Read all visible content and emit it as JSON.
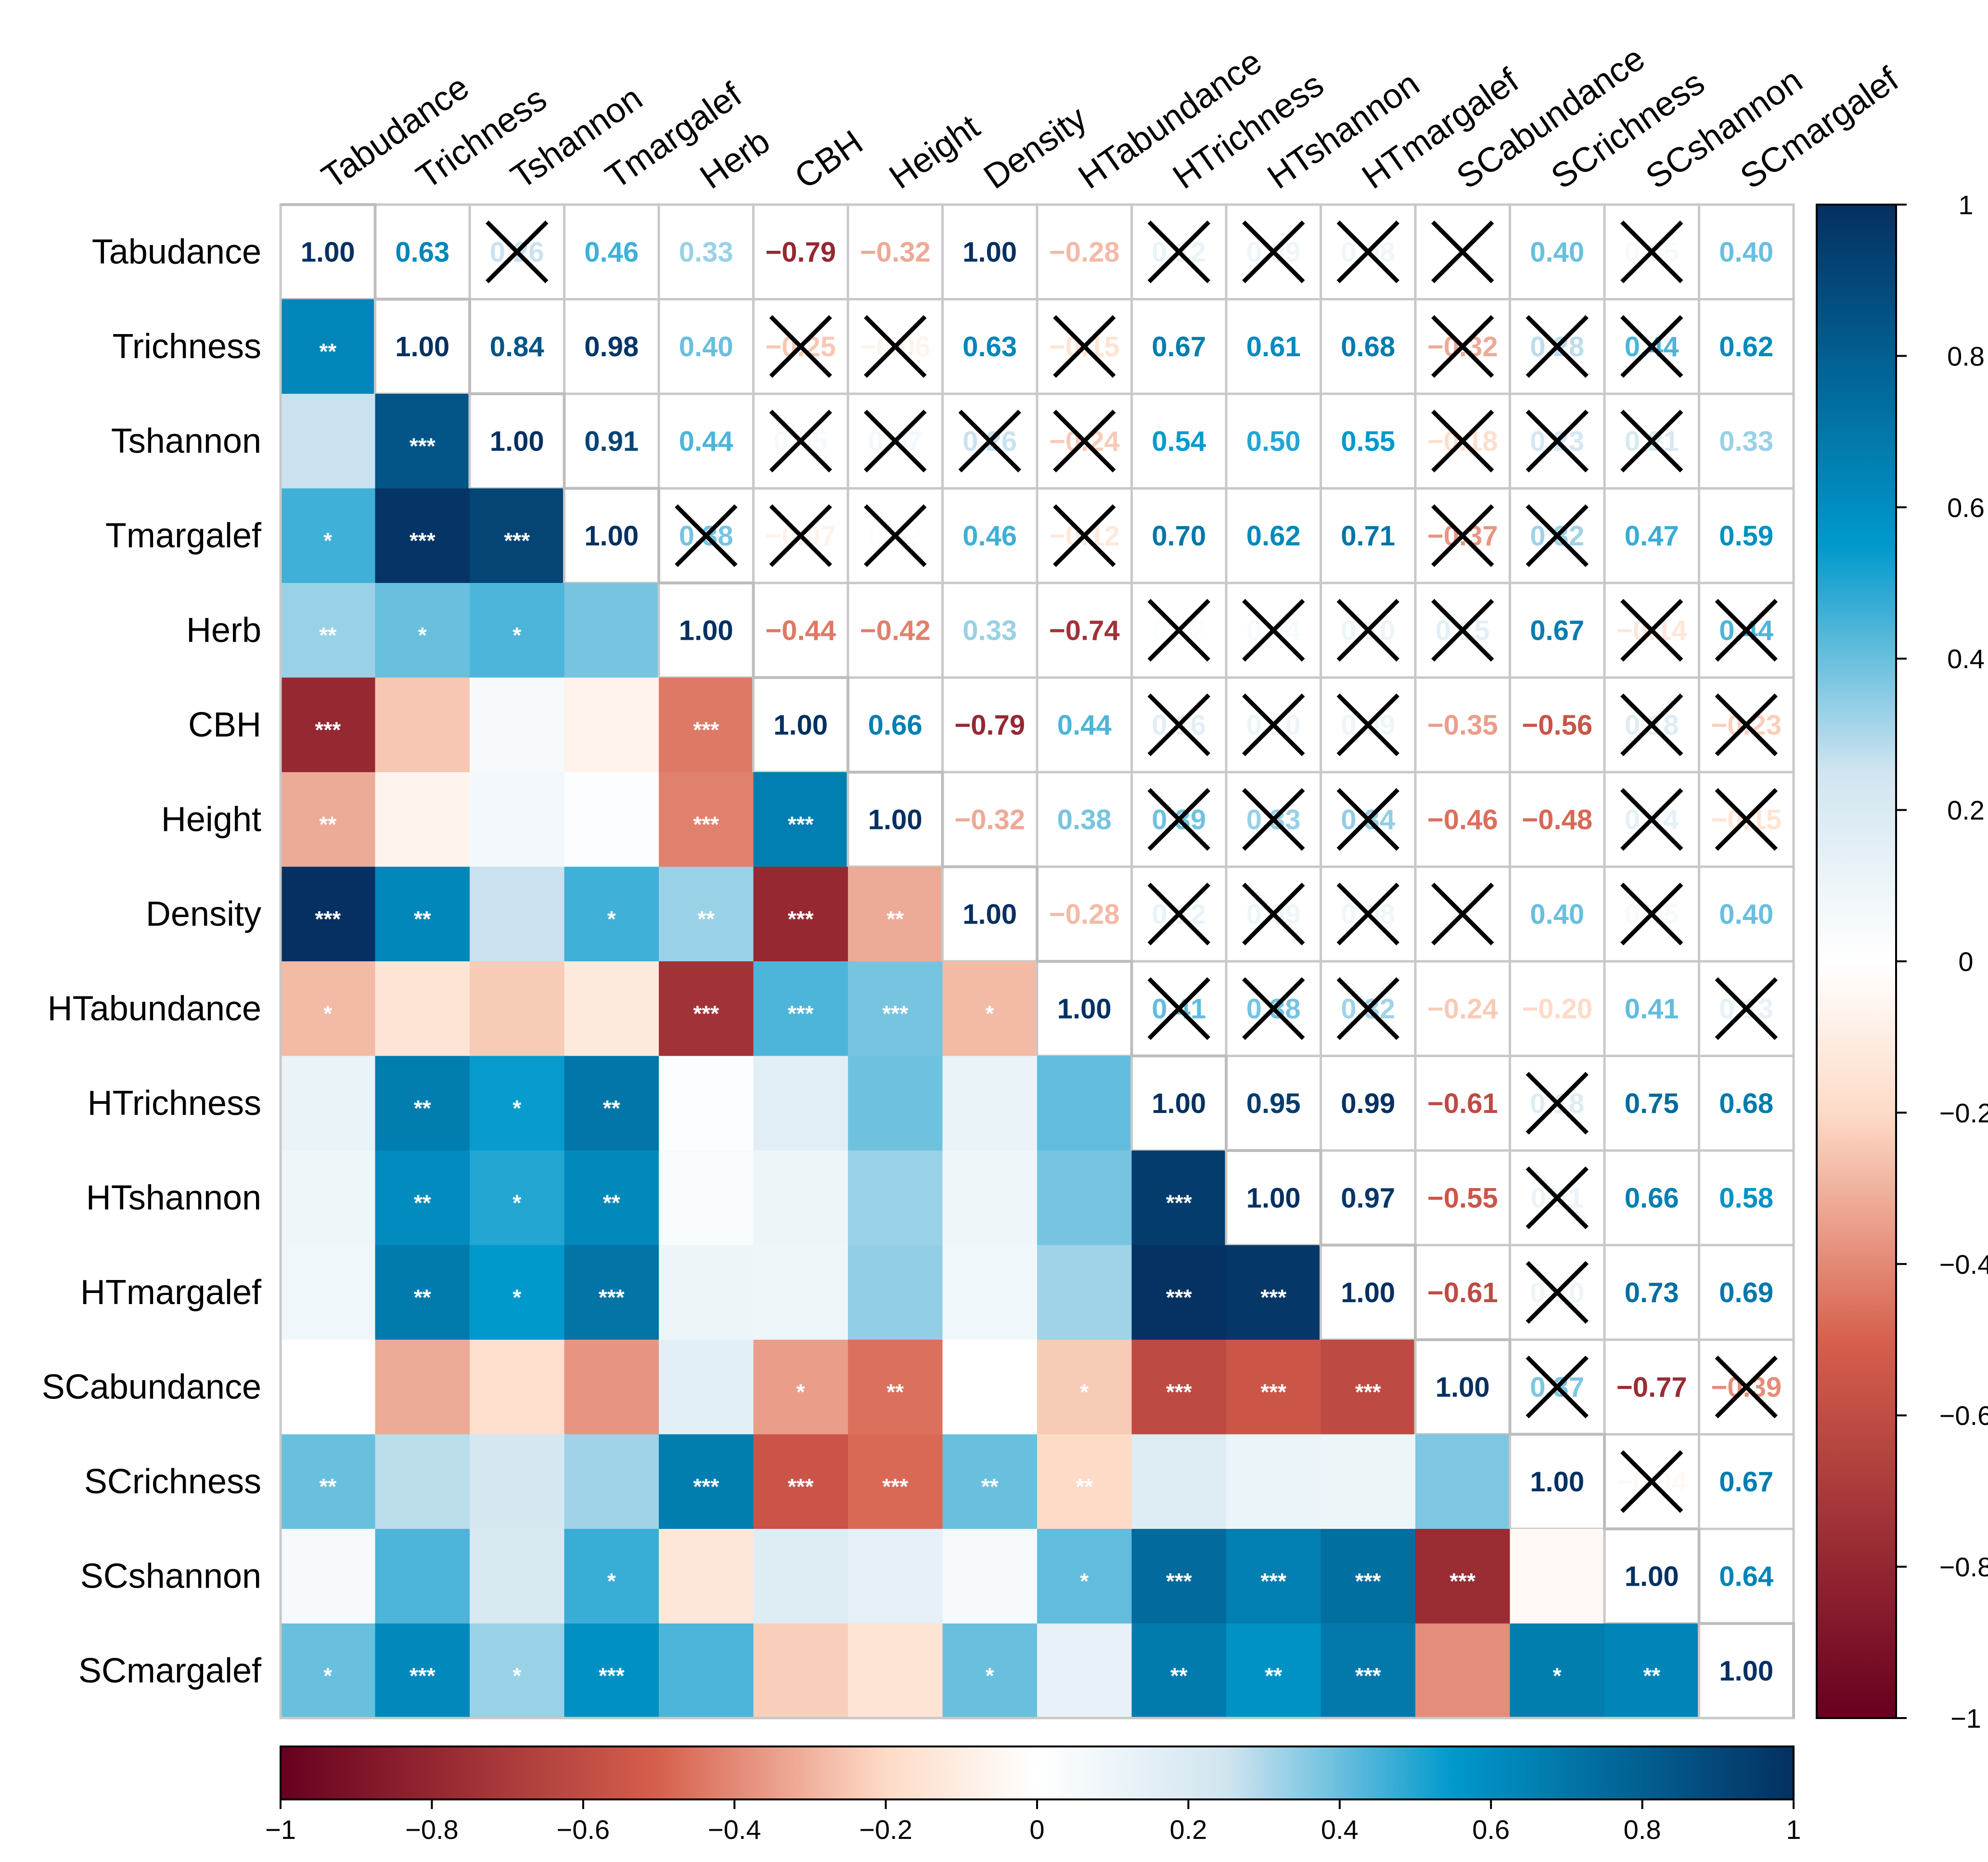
{
  "chart_data": {
    "type": "heatmap",
    "title": "",
    "variables": [
      "Tabudance",
      "Trichness",
      "Tshannon",
      "Tmargalef",
      "Herb",
      "CBH",
      "Height",
      "Density",
      "HTabundance",
      "HTrichness",
      "HTshannon",
      "HTmargalef",
      "SCabundance",
      "SCrichness",
      "SCshannon",
      "SCmargalef"
    ],
    "upper_triangle": "correlation coefficients (numbers); crossed cells = not significant",
    "lower_triangle": "colored squares with significance stars",
    "matrix": [
      [
        1.0,
        0.63,
        0.26,
        0.46,
        0.33,
        -0.79,
        -0.32,
        1.0,
        -0.28,
        0.12,
        0.09,
        0.08,
        0.0,
        0.4,
        0.05,
        0.4
      ],
      [
        0.63,
        1.0,
        0.84,
        0.98,
        0.4,
        -0.25,
        -0.06,
        0.63,
        -0.15,
        0.67,
        0.61,
        0.68,
        -0.32,
        0.28,
        0.44,
        0.62
      ],
      [
        0.26,
        0.84,
        1.0,
        0.91,
        0.44,
        0.05,
        0.07,
        0.26,
        -0.24,
        0.54,
        0.5,
        0.55,
        -0.18,
        0.23,
        0.21,
        0.33
      ],
      [
        0.46,
        0.98,
        0.91,
        1.0,
        0.38,
        -0.07,
        0.02,
        0.46,
        -0.12,
        0.7,
        0.62,
        0.71,
        -0.37,
        0.32,
        0.47,
        0.59
      ],
      [
        0.33,
        0.4,
        0.44,
        0.38,
        1.0,
        -0.44,
        -0.42,
        0.33,
        -0.74,
        0.02,
        0.04,
        0.1,
        0.15,
        0.67,
        -0.14,
        0.44
      ],
      [
        -0.79,
        -0.25,
        0.05,
        -0.07,
        -0.44,
        1.0,
        0.66,
        -0.79,
        0.44,
        0.16,
        0.1,
        0.09,
        -0.35,
        -0.56,
        0.18,
        -0.23
      ],
      [
        -0.32,
        -0.06,
        0.07,
        0.02,
        -0.42,
        0.66,
        1.0,
        -0.32,
        0.38,
        0.39,
        0.33,
        0.34,
        -0.46,
        -0.48,
        0.14,
        -0.15
      ],
      [
        1.0,
        0.63,
        0.26,
        0.46,
        0.33,
        -0.79,
        -0.32,
        1.0,
        -0.28,
        0.12,
        0.09,
        0.08,
        0.0,
        0.4,
        0.05,
        0.4
      ],
      [
        -0.28,
        -0.15,
        -0.24,
        -0.12,
        -0.74,
        0.44,
        0.38,
        -0.28,
        1.0,
        0.41,
        0.38,
        0.32,
        -0.24,
        -0.2,
        0.41,
        0.13
      ],
      [
        0.12,
        0.67,
        0.54,
        0.7,
        0.02,
        0.16,
        0.39,
        0.12,
        0.41,
        1.0,
        0.95,
        0.99,
        -0.61,
        0.18,
        0.75,
        0.68
      ],
      [
        0.09,
        0.61,
        0.5,
        0.62,
        0.04,
        0.1,
        0.33,
        0.09,
        0.38,
        0.95,
        1.0,
        0.97,
        -0.55,
        0.11,
        0.66,
        0.58
      ],
      [
        0.08,
        0.68,
        0.55,
        0.71,
        0.1,
        0.09,
        0.34,
        0.08,
        0.32,
        0.99,
        0.97,
        1.0,
        -0.61,
        0.1,
        0.73,
        0.69
      ],
      [
        0.0,
        -0.32,
        -0.18,
        -0.37,
        0.15,
        -0.35,
        -0.46,
        0.0,
        -0.24,
        -0.61,
        -0.55,
        -0.61,
        1.0,
        0.37,
        -0.77,
        -0.39
      ],
      [
        0.4,
        0.28,
        0.23,
        0.32,
        0.67,
        -0.56,
        -0.48,
        0.4,
        -0.2,
        0.18,
        0.11,
        0.1,
        0.37,
        1.0,
        -0.04,
        0.67
      ],
      [
        0.05,
        0.44,
        0.21,
        0.47,
        -0.14,
        0.18,
        0.14,
        0.05,
        0.41,
        0.75,
        0.66,
        0.73,
        -0.77,
        -0.04,
        1.0,
        0.64
      ],
      [
        0.4,
        0.62,
        0.33,
        0.59,
        0.44,
        -0.23,
        -0.15,
        0.4,
        0.13,
        0.68,
        0.58,
        0.69,
        -0.39,
        0.67,
        0.64,
        1.0
      ]
    ],
    "significance": [
      [
        "",
        "**",
        "",
        "*",
        "**",
        "***",
        "**",
        "***",
        "*",
        "",
        "",
        "",
        "",
        "**",
        "",
        "*"
      ],
      [
        "**",
        "",
        "***",
        "***",
        "*",
        "",
        "",
        "**",
        "",
        "**",
        "**",
        "**",
        "",
        "",
        "",
        "***"
      ],
      [
        "",
        "***",
        "",
        "***",
        "*",
        "",
        "",
        "",
        "",
        "*",
        "*",
        "*",
        "",
        "",
        "",
        "*"
      ],
      [
        "*",
        "***",
        "***",
        "",
        "",
        "",
        "",
        "*",
        "",
        "**",
        "**",
        "***",
        "",
        "",
        "*",
        "***"
      ],
      [
        "**",
        "*",
        "*",
        "",
        "",
        "***",
        "***",
        "**",
        "***",
        "",
        "",
        "",
        "",
        "***",
        "",
        ""
      ],
      [
        "***",
        "",
        "",
        "",
        "***",
        "",
        "***",
        "***",
        "***",
        "",
        "",
        "",
        "*",
        "***",
        "",
        ""
      ],
      [
        "**",
        "",
        "",
        "",
        "***",
        "***",
        "",
        "**",
        "***",
        "",
        "",
        "",
        "**",
        "***",
        "",
        ""
      ],
      [
        "***",
        "**",
        "",
        "*",
        "**",
        "***",
        "**",
        "",
        "*",
        "",
        "",
        "",
        "",
        "**",
        "",
        "*"
      ],
      [
        "*",
        "",
        "",
        "",
        "***",
        "***",
        "***",
        "*",
        "",
        "",
        "",
        "",
        "*",
        "**",
        "*",
        ""
      ],
      [
        "",
        "**",
        "*",
        "**",
        "",
        "",
        "",
        "",
        "",
        "",
        "***",
        "***",
        "***",
        "",
        "***",
        "**"
      ],
      [
        "",
        "**",
        "*",
        "**",
        "",
        "",
        "",
        "",
        "",
        "***",
        "",
        "***",
        "***",
        "",
        "***",
        "**"
      ],
      [
        "",
        "**",
        "*",
        "***",
        "",
        "",
        "",
        "",
        "",
        "***",
        "***",
        "",
        "***",
        "",
        "***",
        "***"
      ],
      [
        "",
        "",
        "",
        "",
        "",
        "*",
        "**",
        "",
        "*",
        "***",
        "***",
        "***",
        "",
        "",
        "***",
        ""
      ],
      [
        "**",
        "",
        "",
        "",
        "***",
        "***",
        "***",
        "**",
        "**",
        "",
        "",
        "",
        "",
        "",
        "",
        "*"
      ],
      [
        "",
        "",
        "",
        "*",
        "",
        "",
        "",
        "",
        "*",
        "***",
        "***",
        "***",
        "***",
        "",
        "",
        "**"
      ],
      [
        "*",
        "***",
        "*",
        "***",
        "",
        "",
        "",
        "*",
        "",
        "**",
        "**",
        "***",
        "",
        "*",
        "**",
        ""
      ]
    ],
    "legend_ticks": [
      "1",
      "0.8",
      "0.6",
      "0.4",
      "0.2",
      "0",
      "−0.2",
      "−0.4",
      "−0.6",
      "−0.8",
      "−1"
    ],
    "bottom_ticks": [
      "−1",
      "−0.8",
      "−0.6",
      "−0.4",
      "−0.2",
      "0",
      "0.2",
      "0.4",
      "0.6",
      "0.8",
      "1"
    ],
    "vlim": [
      -1,
      1
    ],
    "colors": {
      "neg_dark": "#67001f",
      "neg_mid": "#d6604d",
      "neg_light": "#fddbc7",
      "zero": "#ffffff",
      "pos_light": "#d1e5f0",
      "pos_mid": "#0099cc",
      "pos_dark": "#053061",
      "grid": "#c8c8c8"
    }
  }
}
